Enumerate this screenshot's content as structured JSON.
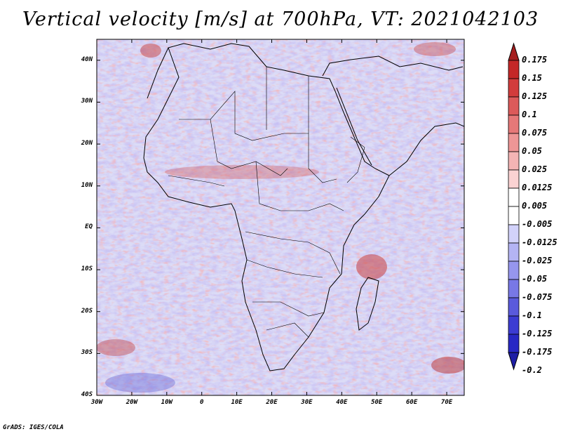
{
  "title": "Vertical velocity [m/s] at 700hPa, VT: 2021042103",
  "map": {
    "lat_labels": [
      "40N",
      "30N",
      "20N",
      "10N",
      "EQ",
      "10S",
      "20S",
      "30S",
      "40S"
    ],
    "lon_labels": [
      "30W",
      "20W",
      "10W",
      "0",
      "10E",
      "20E",
      "30E",
      "40E",
      "50E",
      "60E",
      "70E"
    ],
    "extent": {
      "lon_min": -30,
      "lon_max": 75,
      "lat_min": -40,
      "lat_max": 45
    }
  },
  "colorbar": {
    "labels": [
      "0.175",
      "0.15",
      "0.125",
      "0.1",
      "0.075",
      "0.05",
      "0.025",
      "0.0125",
      "0.005",
      "-0.005",
      "-0.0125",
      "-0.025",
      "-0.05",
      "-0.075",
      "-0.1",
      "-0.125",
      "-0.175",
      "-0.2"
    ],
    "colors": [
      "#a51e1e",
      "#c42828",
      "#d23c3c",
      "#dc5a5a",
      "#e67878",
      "#ee9696",
      "#f4b4b4",
      "#fad2d2",
      "#ffffff",
      "#ffffff",
      "#d2d2fa",
      "#b4b4f4",
      "#9696ee",
      "#7878e6",
      "#5a5adc",
      "#3c3cd2",
      "#2828c4",
      "#1e1ea5"
    ]
  },
  "credit": "GrADS: IGES/COLA"
}
